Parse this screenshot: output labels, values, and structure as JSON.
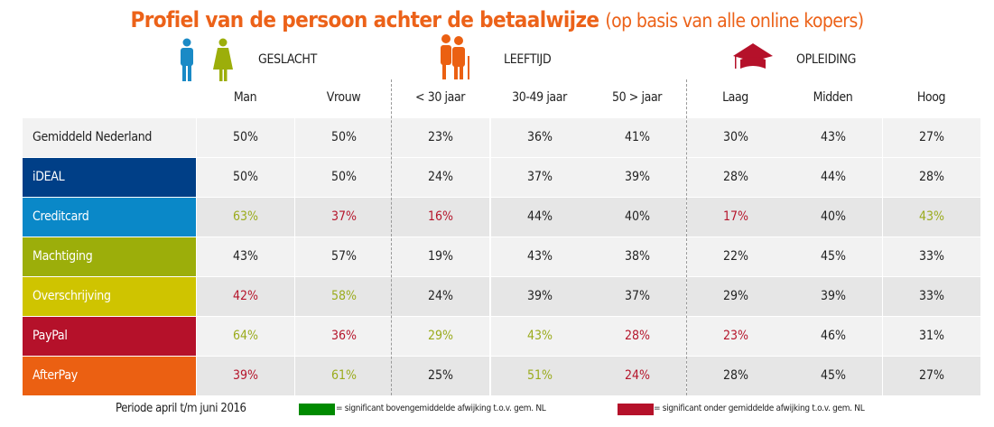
{
  "title": {
    "main": "Profiel van de persoon achter de betaalwijze",
    "sub": "(op basis van alle online kopers)"
  },
  "groups": [
    {
      "label": "GESLACHT",
      "icon": "man-woman-icon"
    },
    {
      "label": "LEEFTIJD",
      "icon": "elderly-couple-icon"
    },
    {
      "label": "OPLEIDING",
      "icon": "graduation-cap-icon"
    }
  ],
  "columns": [
    "Man",
    "Vrouw",
    "< 30 jaar",
    "30-49 jaar",
    "50 > jaar",
    "Laag",
    "Midden",
    "Hoog"
  ],
  "colors": {
    "green": "#9aab1c",
    "red": "#b5152b",
    "normal": "#222222"
  },
  "rows": [
    {
      "label": "Gemiddeld Nederland",
      "color": "#f2f2f2",
      "text": "#222222",
      "values": [
        "50%",
        "50%",
        "23%",
        "36%",
        "41%",
        "30%",
        "43%",
        "27%"
      ],
      "sig": [
        "",
        "",
        "",
        "",
        "",
        "",
        "",
        ""
      ]
    },
    {
      "label": "iDEAL",
      "color": "#003f87",
      "text": "#ffffff",
      "values": [
        "50%",
        "50%",
        "24%",
        "37%",
        "39%",
        "28%",
        "44%",
        "28%"
      ],
      "sig": [
        "",
        "",
        "",
        "",
        "",
        "",
        "",
        ""
      ]
    },
    {
      "label": "Creditcard",
      "color": "#0a88c8",
      "text": "#ffffff",
      "values": [
        "63%",
        "37%",
        "16%",
        "44%",
        "40%",
        "17%",
        "40%",
        "43%"
      ],
      "sig": [
        "g",
        "r",
        "r",
        "",
        "",
        "r",
        "",
        "g"
      ]
    },
    {
      "label": "Machtiging",
      "color": "#9cae0a",
      "text": "#ffffff",
      "values": [
        "43%",
        "57%",
        "19%",
        "43%",
        "38%",
        "22%",
        "45%",
        "33%"
      ],
      "sig": [
        "",
        "",
        "",
        "",
        "",
        "",
        "",
        ""
      ]
    },
    {
      "label": "Overschrijving",
      "color": "#cfc400",
      "text": "#ffffff",
      "values": [
        "42%",
        "58%",
        "24%",
        "39%",
        "37%",
        "29%",
        "39%",
        "33%"
      ],
      "sig": [
        "r",
        "g",
        "",
        "",
        "",
        "",
        "",
        ""
      ]
    },
    {
      "label": "PayPal",
      "color": "#b5112a",
      "text": "#ffffff",
      "values": [
        "64%",
        "36%",
        "29%",
        "43%",
        "28%",
        "23%",
        "46%",
        "31%"
      ],
      "sig": [
        "g",
        "r",
        "g",
        "g",
        "r",
        "r",
        "",
        ""
      ]
    },
    {
      "label": "AfterPay",
      "color": "#eb6012",
      "text": "#ffffff",
      "values": [
        "39%",
        "61%",
        "25%",
        "51%",
        "24%",
        "28%",
        "45%",
        "27%"
      ],
      "sig": [
        "r",
        "g",
        "",
        "g",
        "r",
        "",
        "",
        ""
      ]
    }
  ],
  "footer": {
    "period": "Periode april t/m juni 2016",
    "legend_above": "= significant bovengemiddelde afwijking t.o.v. gem. NL",
    "legend_above_color": "#008a00",
    "legend_below": "= significant onder gemiddelde afwijking t.o.v. gem. NL",
    "legend_below_color": "#b5112a"
  }
}
